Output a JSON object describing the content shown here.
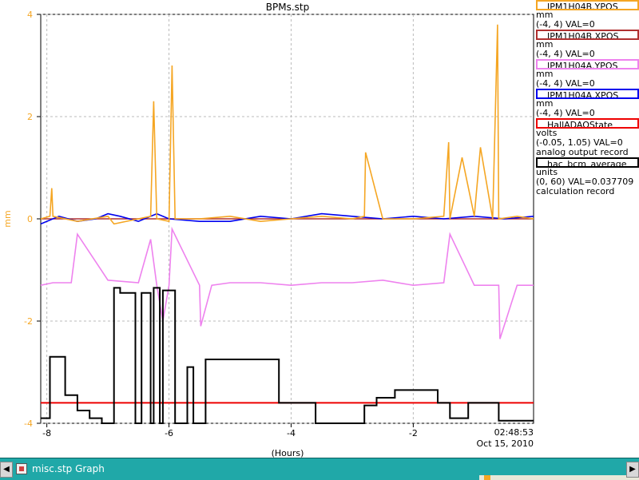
{
  "window": {
    "taskbar_title": "misc.stp Graph"
  },
  "chart_data": {
    "type": "line",
    "title": "BPMs.stp",
    "xlabel": "(Hours)",
    "ylabel": "mm",
    "xlim": [
      -8.1,
      -0.03
    ],
    "ylim": [
      -4,
      4
    ],
    "x_ticks": [
      -8,
      -6,
      -4,
      -2
    ],
    "y_ticks": [
      4,
      2,
      0,
      -2,
      -4
    ],
    "grid": true,
    "timestamp": {
      "time": "02:48:53",
      "date": "Oct 15, 2010"
    },
    "series": [
      {
        "name": "IPM1H04B.YPOS",
        "unit": "mm",
        "range_text": "(-4, 4) VAL=0",
        "record_type": "",
        "color": "#f5a623",
        "x": [
          -8.1,
          -7.95,
          -7.92,
          -7.9,
          -7.5,
          -7.0,
          -6.9,
          -6.5,
          -6.3,
          -6.25,
          -6.2,
          -6.0,
          -5.95,
          -5.9,
          -5.5,
          -5.0,
          -4.5,
          -4.0,
          -3.5,
          -3.0,
          -2.8,
          -2.78,
          -2.5,
          -2.0,
          -1.5,
          -1.42,
          -1.4,
          -1.2,
          -1.0,
          -0.9,
          -0.7,
          -0.62,
          -0.6,
          -0.3,
          -0.03
        ],
        "y": [
          0.0,
          0.05,
          0.6,
          0.05,
          -0.05,
          0.05,
          -0.1,
          0.0,
          0.05,
          2.3,
          0.0,
          -0.05,
          3.0,
          0.0,
          0.0,
          0.05,
          -0.05,
          0.0,
          0.05,
          0.0,
          0.05,
          1.3,
          0.0,
          0.0,
          0.05,
          1.5,
          0.0,
          1.2,
          0.05,
          1.4,
          0.0,
          3.8,
          0.0,
          0.05,
          0.0
        ]
      },
      {
        "name": "IPM1H04B.XPOS",
        "unit": "mm",
        "range_text": "(-4, 4) VAL=0",
        "record_type": "",
        "color": "#b03030",
        "x": [
          -8.1,
          -0.03
        ],
        "y": [
          0.0,
          0.0
        ]
      },
      {
        "name": "IPM1H04A.YPOS",
        "unit": "mm",
        "range_text": "(-4, 4) VAL=0",
        "record_type": "",
        "color": "#ee82ee",
        "x": [
          -8.1,
          -7.9,
          -7.6,
          -7.5,
          -7.0,
          -6.5,
          -6.3,
          -6.2,
          -6.1,
          -6.0,
          -5.95,
          -5.5,
          -5.48,
          -5.3,
          -5.0,
          -4.5,
          -4.0,
          -3.5,
          -3.0,
          -2.5,
          -2.0,
          -1.5,
          -1.4,
          -1.0,
          -0.8,
          -0.6,
          -0.58,
          -0.3,
          -0.03
        ],
        "y": [
          -1.3,
          -1.25,
          -1.25,
          -0.3,
          -1.2,
          -1.25,
          -0.4,
          -1.3,
          -2.0,
          -1.3,
          -0.2,
          -1.3,
          -2.1,
          -1.3,
          -1.25,
          -1.25,
          -1.3,
          -1.25,
          -1.25,
          -1.2,
          -1.3,
          -1.25,
          -0.3,
          -1.3,
          -1.3,
          -1.3,
          -2.35,
          -1.3,
          -1.3
        ]
      },
      {
        "name": "IPM1H04A.XPOS",
        "unit": "mm",
        "range_text": "(-4, 4) VAL=0",
        "record_type": "",
        "color": "#0000ee",
        "x": [
          -8.1,
          -7.8,
          -7.5,
          -7.2,
          -7.0,
          -6.8,
          -6.5,
          -6.2,
          -6.0,
          -5.5,
          -5.0,
          -4.5,
          -4.0,
          -3.5,
          -3.0,
          -2.5,
          -2.0,
          -1.5,
          -1.0,
          -0.5,
          -0.03
        ],
        "y": [
          -0.1,
          0.05,
          -0.05,
          0.0,
          0.1,
          0.05,
          -0.05,
          0.1,
          0.0,
          -0.05,
          -0.05,
          0.05,
          0.0,
          0.1,
          0.05,
          0.0,
          0.05,
          0.0,
          0.05,
          0.0,
          0.05
        ]
      },
      {
        "name": "HallADAQState",
        "unit": "volts",
        "range_text": "(-0.05, 1.05) VAL=0",
        "record_type": "analog output record",
        "color": "#ee0000",
        "x": [
          -8.1,
          -0.03
        ],
        "y": [
          -3.6,
          -3.6
        ]
      },
      {
        "name": "hac_bcm_average",
        "unit": "units",
        "range_text": "(0, 60) VAL=0.037709",
        "record_type": "calculation record",
        "color": "#000000",
        "x": [
          -8.1,
          -7.95,
          -7.95,
          -7.7,
          -7.7,
          -7.5,
          -7.5,
          -7.3,
          -7.3,
          -7.1,
          -7.1,
          -6.9,
          -6.9,
          -6.8,
          -6.8,
          -6.55,
          -6.55,
          -6.45,
          -6.45,
          -6.3,
          -6.3,
          -6.25,
          -6.25,
          -6.15,
          -6.15,
          -6.1,
          -6.1,
          -5.9,
          -5.9,
          -5.7,
          -5.7,
          -5.6,
          -5.6,
          -5.4,
          -5.4,
          -4.2,
          -4.2,
          -3.6,
          -3.6,
          -2.8,
          -2.8,
          -2.6,
          -2.6,
          -2.3,
          -2.3,
          -1.6,
          -1.6,
          -1.4,
          -1.4,
          -1.1,
          -1.1,
          -0.6,
          -0.6,
          -0.03
        ],
        "y": [
          -3.9,
          -3.9,
          -2.7,
          -2.7,
          -3.45,
          -3.45,
          -3.75,
          -3.75,
          -3.9,
          -3.9,
          -4.0,
          -4.0,
          -1.35,
          -1.35,
          -1.45,
          -1.45,
          -4.0,
          -4.0,
          -1.45,
          -1.45,
          -4.0,
          -4.0,
          -1.35,
          -1.35,
          -4.0,
          -4.0,
          -1.4,
          -1.4,
          -4.0,
          -4.0,
          -2.9,
          -2.9,
          -4.0,
          -4.0,
          -2.75,
          -2.75,
          -3.6,
          -3.6,
          -4.0,
          -4.0,
          -3.65,
          -3.65,
          -3.5,
          -3.5,
          -3.35,
          -3.35,
          -3.6,
          -3.6,
          -3.9,
          -3.9,
          -3.6,
          -3.6,
          -3.95,
          -3.95
        ]
      }
    ]
  }
}
